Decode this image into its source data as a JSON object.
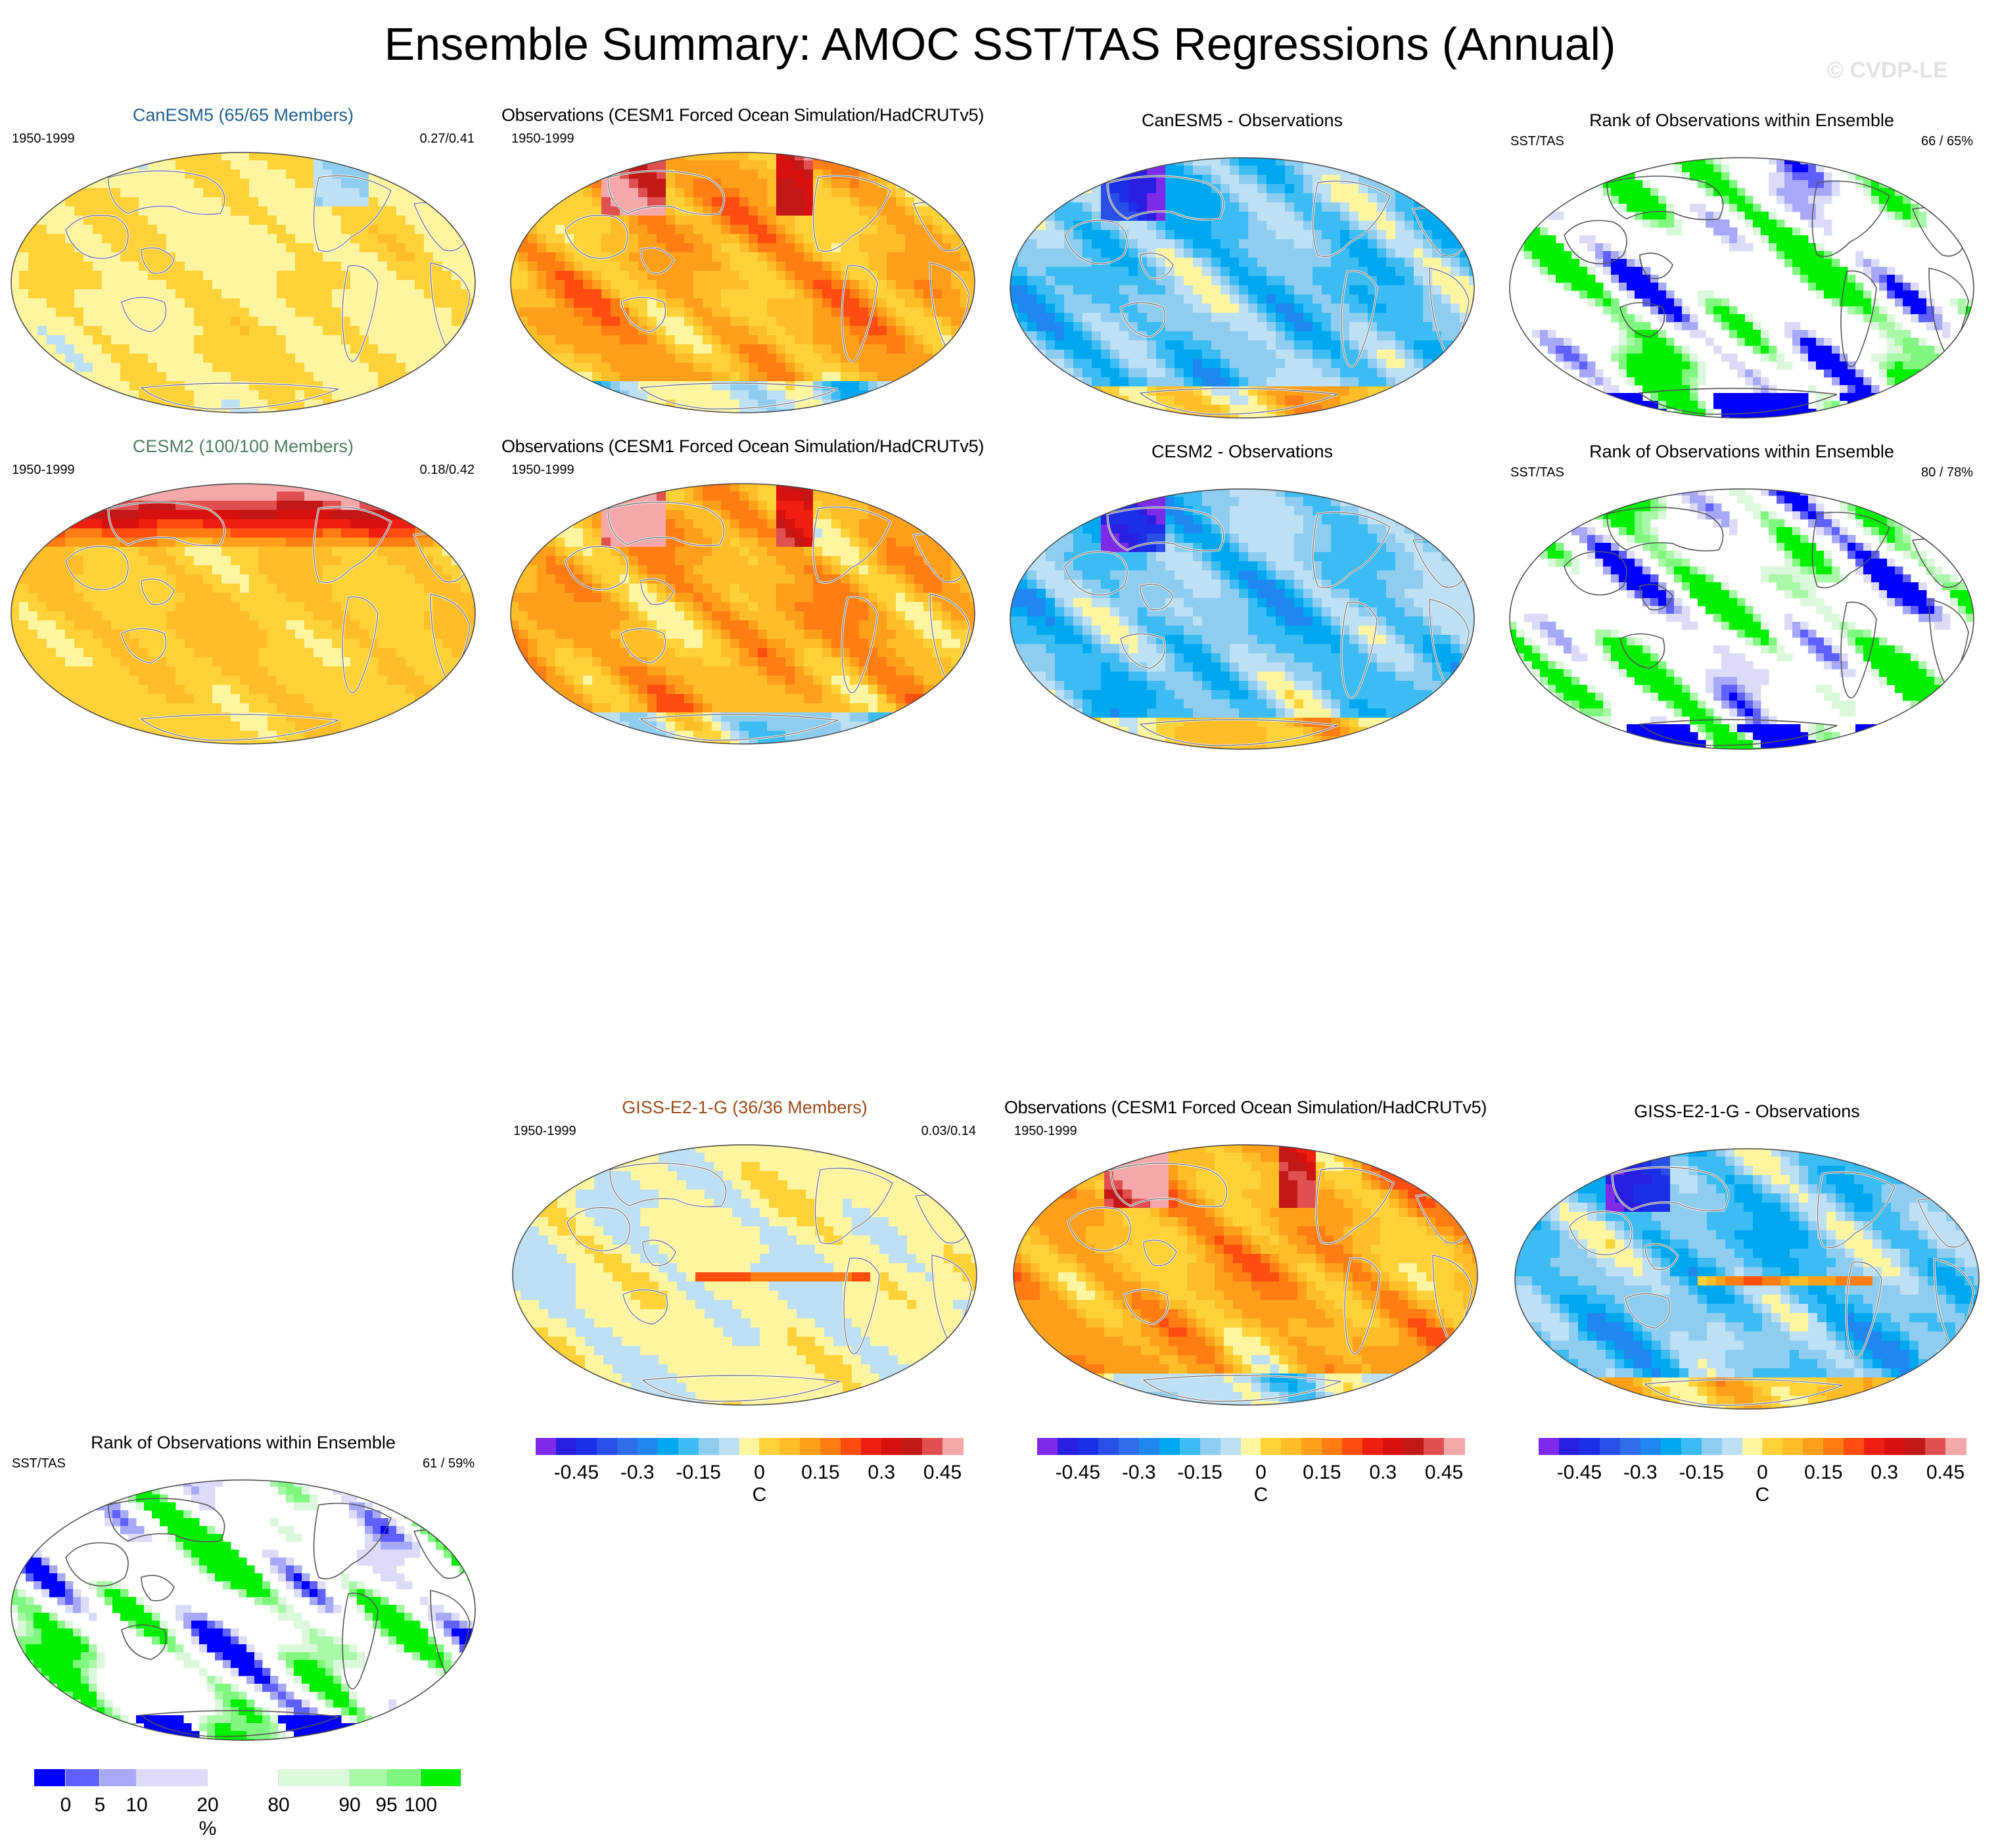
{
  "title": "Ensemble Summary: AMOC SST/TAS Regressions (Annual)",
  "watermark": "© CVDP-LE",
  "rows": [
    {
      "model": {
        "title": "CanESM5 (65/65 Members)",
        "title_color": "#1f5e8a",
        "period": "1950-1999",
        "stats": "0.27/0.41"
      },
      "obs": {
        "title": "Observations (CESM1 Forced Ocean Simulation/HadCRUTv5)",
        "period": "1950-1999"
      },
      "diff": {
        "title": "CanESM5 - Observations"
      },
      "rank": {
        "title": "Rank of Observations within Ensemble",
        "left": "SST/TAS",
        "right": "66 /  65%"
      }
    },
    {
      "model": {
        "title": "CESM2 (100/100 Members)",
        "title_color": "#4d7d5d",
        "period": "1950-1999",
        "stats": "0.18/0.42"
      },
      "obs": {
        "title": "Observations (CESM1 Forced Ocean Simulation/HadCRUTv5)",
        "period": "1950-1999"
      },
      "diff": {
        "title": "CESM2 - Observations"
      },
      "rank": {
        "title": "Rank of Observations within Ensemble",
        "left": "SST/TAS",
        "right": "80 /  78%"
      }
    },
    {
      "model": {
        "title": "GISS-E2-1-G (36/36 Members)",
        "title_color": "#9a4a1a",
        "period": "1950-1999",
        "stats": "0.03/0.14"
      },
      "obs": {
        "title": "Observations (CESM1 Forced Ocean Simulation/HadCRUTv5)",
        "period": "1950-1999"
      },
      "diff": {
        "title": "GISS-E2-1-G - Observations"
      },
      "rank": {
        "title": "Rank of Observations within Ensemble",
        "left": "SST/TAS",
        "right": "61 /  59%"
      }
    }
  ],
  "regression_colorbar": {
    "labels": [
      "-0.45",
      "-0.3",
      "-0.15",
      "0",
      "0.15",
      "0.3",
      "0.45"
    ],
    "unit": "C",
    "colors": [
      "#7d2be8",
      "#2a1fe0",
      "#1c2fe8",
      "#2a4fe6",
      "#2f6ee8",
      "#1e88f0",
      "#00a8f0",
      "#3cbcf2",
      "#8fcdf0",
      "#bde0f5",
      "#fdf5a0",
      "#ffd23a",
      "#ffbe28",
      "#ff9f1a",
      "#ff7d12",
      "#ff4d10",
      "#f01e10",
      "#d8100e",
      "#c21818",
      "#e05050",
      "#f4a8aa"
    ]
  },
  "rank_colorbar": {
    "labels": [
      "0",
      "5",
      "10",
      "20",
      "80",
      "90",
      "95",
      "100"
    ],
    "unit": "%",
    "colors": [
      "#0000ff",
      "#6060ff",
      "#a8a8f8",
      "#dcdcf8",
      "#ffffff",
      "#dcf8dc",
      "#a8f8a8",
      "#80f880",
      "#00f000"
    ]
  }
}
